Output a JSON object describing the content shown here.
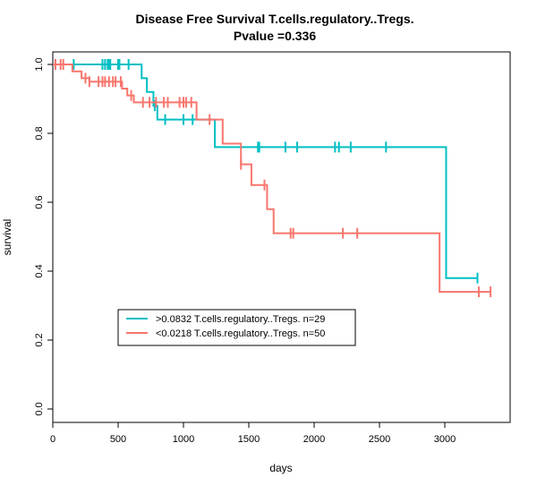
{
  "chart_data": {
    "type": "line",
    "title": "Disease Free Survival T.cells.regulatory..Tregs.",
    "subtitle": "Pvalue =0.336",
    "xlabel": "days",
    "ylabel": "survival",
    "xlim": [
      0,
      3400
    ],
    "ylim": [
      0,
      1
    ],
    "xticks": [
      0,
      500,
      1000,
      1500,
      2000,
      2500,
      3000
    ],
    "yticks": [
      0.0,
      0.2,
      0.4,
      0.6,
      0.8,
      1.0
    ],
    "xtick_labels": [
      "0",
      "500",
      "1000",
      "1500",
      "2000",
      "2500",
      "3000"
    ],
    "ytick_labels": [
      "0.0",
      "0.2",
      "0.4",
      "0.6",
      "0.8",
      "1.0"
    ],
    "grid": false,
    "legend_position": "lower-left",
    "series": [
      {
        "name": ">0.0832 T.cells.regulatory..Tregs. n=29",
        "color": "#00BFC4",
        "steps": [
          [
            0,
            1.0
          ],
          [
            680,
            0.96
          ],
          [
            720,
            0.92
          ],
          [
            770,
            0.88
          ],
          [
            800,
            0.84
          ],
          [
            1240,
            0.76
          ],
          [
            3010,
            0.38
          ],
          [
            3250,
            0.38
          ]
        ],
        "censor_times": [
          20,
          160,
          380,
          400,
          420,
          430,
          440,
          500,
          510,
          580,
          780,
          860,
          1000,
          1070,
          1570,
          1580,
          1780,
          1870,
          2160,
          2190,
          2280,
          2550,
          3250
        ]
      },
      {
        "name": "<0.0218 T.cells.regulatory..Tregs. n=50",
        "color": "#F8766D",
        "steps": [
          [
            0,
            1.0
          ],
          [
            150,
            0.98
          ],
          [
            220,
            0.96
          ],
          [
            280,
            0.95
          ],
          [
            530,
            0.93
          ],
          [
            570,
            0.91
          ],
          [
            620,
            0.89
          ],
          [
            1100,
            0.84
          ],
          [
            1300,
            0.77
          ],
          [
            1440,
            0.71
          ],
          [
            1520,
            0.65
          ],
          [
            1640,
            0.58
          ],
          [
            1690,
            0.51
          ],
          [
            2960,
            0.34
          ],
          [
            3350,
            0.34
          ]
        ],
        "censor_times": [
          20,
          60,
          80,
          250,
          280,
          350,
          380,
          400,
          430,
          460,
          480,
          520,
          600,
          690,
          740,
          790,
          850,
          880,
          970,
          1000,
          1020,
          1060,
          1200,
          1440,
          1620,
          1820,
          1840,
          2220,
          2330,
          3260,
          3350
        ]
      }
    ]
  }
}
